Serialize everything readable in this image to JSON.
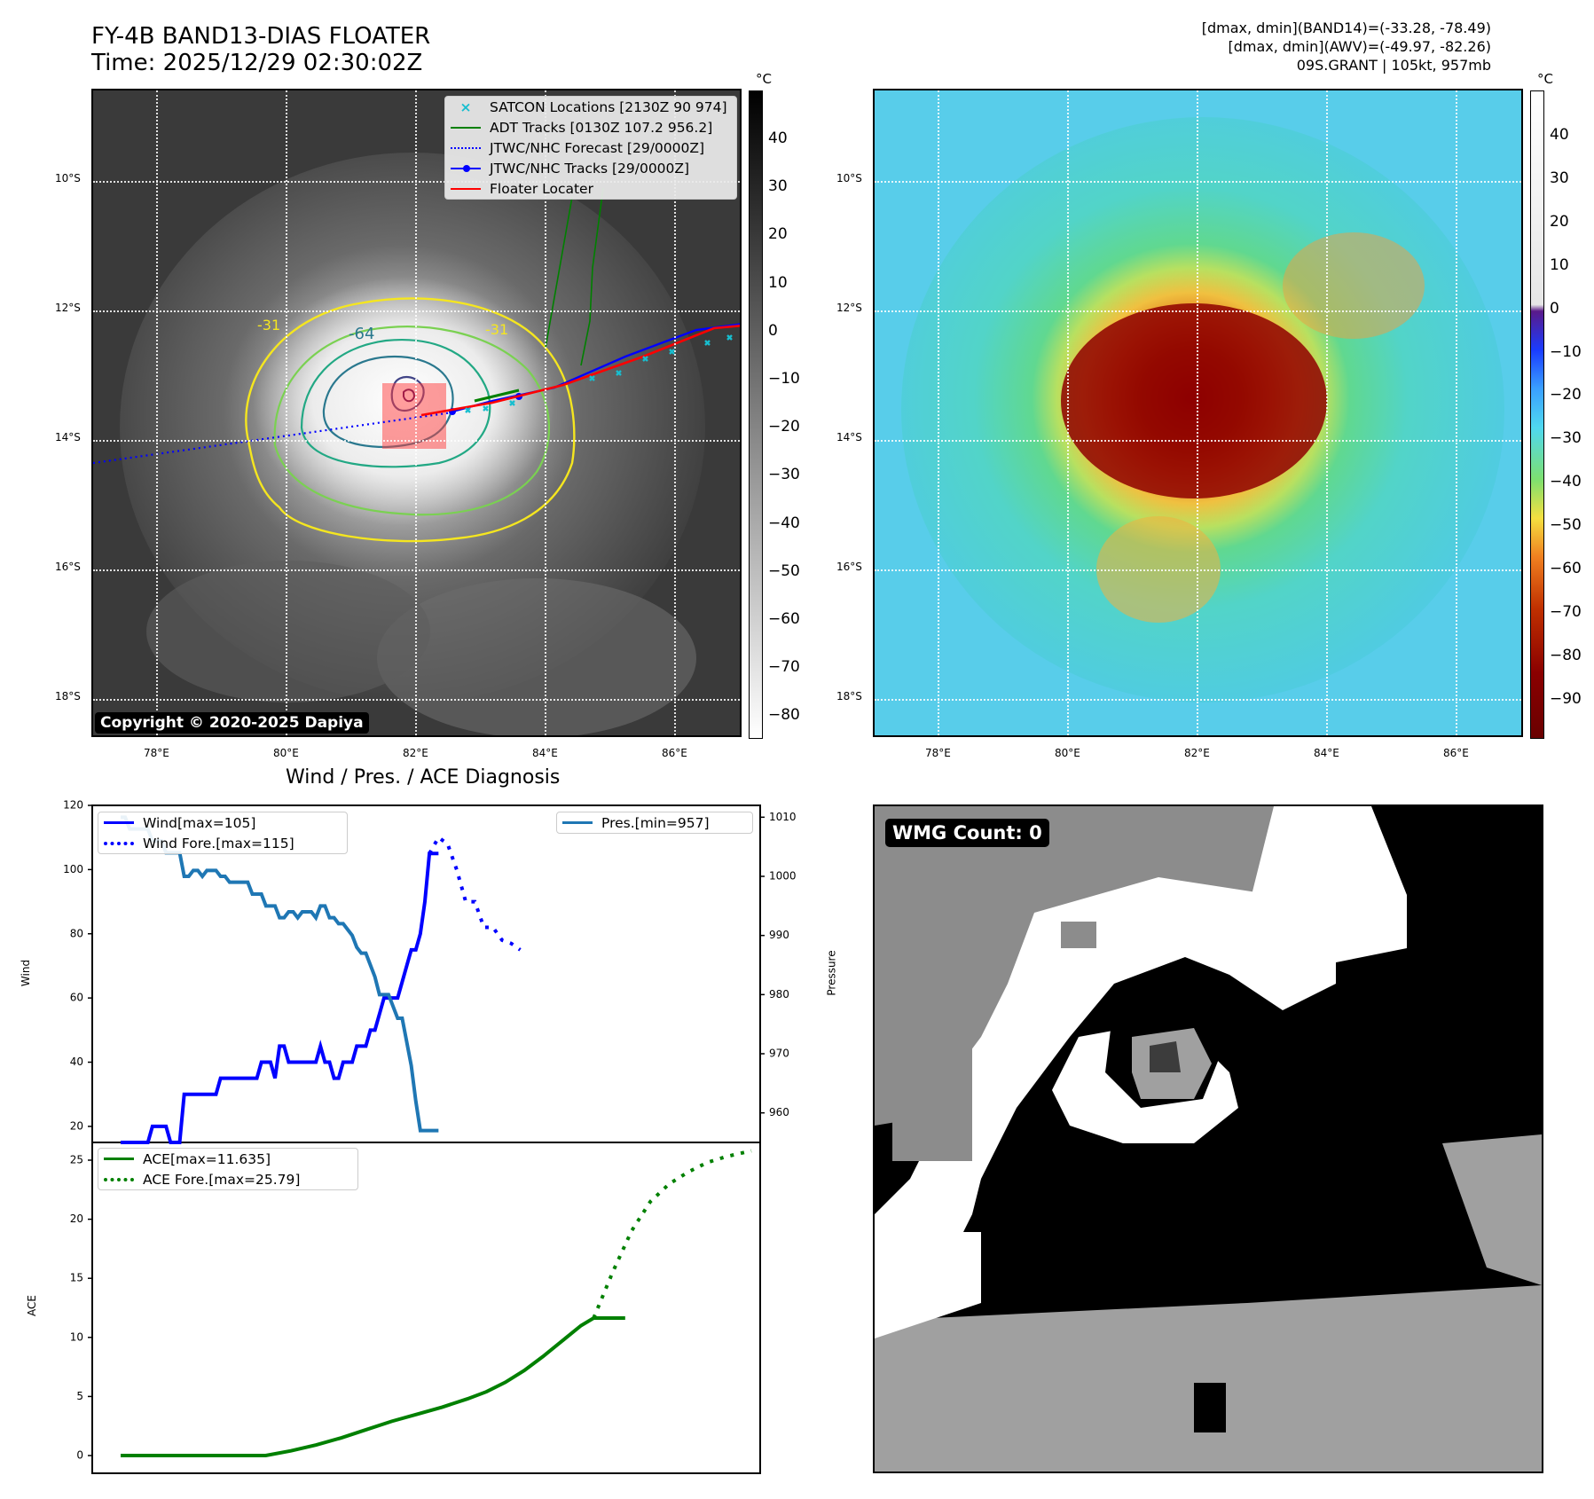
{
  "header": {
    "title_line1": "FY-4B BAND13-DIAS FLOATER",
    "title_line2": "Time: 2025/12/29 02:30:02Z",
    "info_line1": "[dmax, dmin](BAND14)=(-33.28, -78.49)",
    "info_line2": "[dmax, dmin](AWV)=(-49.97, -82.26)",
    "info_line3": "09S.GRANT | 105kt, 957mb"
  },
  "maps": {
    "lat_ticks": [
      "10°S",
      "12°S",
      "14°S",
      "16°S",
      "18°S"
    ],
    "lon_ticks": [
      "78°E",
      "80°E",
      "82°E",
      "84°E",
      "86°E"
    ],
    "colorbar_unit": "°C",
    "colorbar1_ticks": [
      "40",
      "30",
      "20",
      "10",
      "0",
      "−10",
      "−20",
      "−30",
      "−40",
      "−50",
      "−60",
      "−70",
      "−80"
    ],
    "colorbar2_ticks": [
      "40",
      "30",
      "20",
      "10",
      "0",
      "−10",
      "−20",
      "−30",
      "−40",
      "−50",
      "−60",
      "−70",
      "−80",
      "−90"
    ],
    "contour_labels": [
      "-31",
      "-64",
      "-31"
    ],
    "copyright": "Copyright © 2020-2025 Dapiya",
    "legend": [
      {
        "label": "SATCON Locations [2130Z 90 974]",
        "color": "#17becf"
      },
      {
        "label": "ADT Tracks [0130Z 107.2 956.2]",
        "color": "#008000"
      },
      {
        "label": "JTWC/NHC Forecast [29/0000Z]",
        "color": "#0000ff"
      },
      {
        "label": "JTWC/NHC Tracks [29/0000Z]",
        "color": "#0000ff"
      },
      {
        "label": "Floater Locater",
        "color": "#ff0000"
      }
    ]
  },
  "diagnosis": {
    "title": "Wind / Pres. / ACE Diagnosis",
    "wind_ylabel": "Wind",
    "pres_ylabel": "Pressure",
    "ace_ylabel": "ACE",
    "wind_ticks": [
      "120",
      "100",
      "80",
      "60",
      "40",
      "20"
    ],
    "pres_ticks": [
      "1010",
      "1000",
      "990",
      "980",
      "970",
      "960"
    ],
    "ace_ticks": [
      "25",
      "20",
      "15",
      "10",
      "5",
      "0"
    ],
    "legend_wind": "Wind[max=105]",
    "legend_wind_fore": "Wind Fore.[max=115]",
    "legend_pres": "Pres.[min=957]",
    "legend_ace": "ACE[max=11.635]",
    "legend_ace_fore": "ACE Fore.[max=25.79]",
    "wmg_label": "WMG Count: 0"
  },
  "chart_data": [
    {
      "type": "line",
      "title": "Wind / Pres. / ACE Diagnosis",
      "ylabel": "Wind",
      "ylim": [
        15,
        120
      ],
      "series": [
        {
          "name": "Wind[max=105]",
          "color": "#0000ff",
          "style": "solid",
          "x": [
            0,
            1,
            2,
            3,
            4,
            5,
            6,
            7,
            8,
            9,
            10,
            11,
            12,
            13,
            14,
            15,
            16,
            17,
            18,
            19,
            20,
            21,
            22,
            23,
            24,
            25,
            26,
            27,
            28,
            29,
            30,
            31,
            32,
            33,
            34,
            35,
            36,
            37,
            38,
            39,
            40,
            41,
            42,
            43,
            44,
            45,
            46,
            47,
            48,
            49,
            50,
            51,
            52,
            53,
            54,
            55,
            56,
            57,
            58,
            59,
            60,
            61,
            62,
            63,
            64,
            65,
            66,
            67,
            68,
            69,
            70
          ],
          "values": [
            15,
            15,
            15,
            15,
            15,
            15,
            15,
            20,
            20,
            20,
            20,
            15,
            15,
            15,
            30,
            30,
            30,
            30,
            30,
            30,
            30,
            30,
            35,
            35,
            35,
            35,
            35,
            35,
            35,
            35,
            35,
            40,
            40,
            40,
            35,
            45,
            45,
            40,
            40,
            40,
            40,
            40,
            40,
            40,
            45,
            40,
            40,
            35,
            35,
            40,
            40,
            40,
            45,
            45,
            45,
            50,
            50,
            55,
            60,
            60,
            60,
            60,
            65,
            70,
            75,
            75,
            80,
            90,
            105,
            105,
            105
          ]
        },
        {
          "name": "Wind Fore.[max=115]",
          "color": "#0000ff",
          "style": "dotted",
          "x": [
            68,
            70,
            72,
            74,
            76,
            78,
            80,
            82,
            84,
            86,
            88
          ],
          "values": [
            105,
            110,
            108,
            100,
            90,
            90,
            82,
            82,
            78,
            77,
            75
          ]
        }
      ]
    },
    {
      "type": "line",
      "ylabel": "Pressure",
      "ylim": [
        955,
        1012
      ],
      "series": [
        {
          "name": "Pres.[min=957]",
          "color": "#1f77b4",
          "style": "solid",
          "x": [
            0,
            1,
            2,
            3,
            4,
            5,
            6,
            7,
            8,
            9,
            10,
            11,
            12,
            13,
            14,
            15,
            16,
            17,
            18,
            19,
            20,
            21,
            22,
            23,
            24,
            25,
            26,
            27,
            28,
            29,
            30,
            31,
            32,
            33,
            34,
            35,
            36,
            37,
            38,
            39,
            40,
            41,
            42,
            43,
            44,
            45,
            46,
            47,
            48,
            49,
            50,
            51,
            52,
            53,
            54,
            55,
            56,
            57,
            58,
            59,
            60,
            61,
            62,
            63,
            64,
            65,
            66,
            67,
            68,
            69,
            70
          ],
          "values": [
            1010,
            1010,
            1008,
            1008,
            1008,
            1008,
            1008,
            1006,
            1006,
            1006,
            1004,
            1004,
            1004,
            1004,
            1000,
            1000,
            1001,
            1001,
            1000,
            1001,
            1001,
            1001,
            1000,
            1000,
            999,
            999,
            999,
            999,
            999,
            997,
            997,
            997,
            995,
            995,
            995,
            993,
            993,
            994,
            994,
            993,
            994,
            994,
            994,
            993,
            995,
            995,
            993,
            993,
            992,
            992,
            991,
            990,
            988,
            987,
            987,
            985,
            983,
            980,
            980,
            980,
            978,
            976,
            976,
            972,
            968,
            962,
            957,
            957,
            957,
            957,
            957
          ]
        }
      ]
    },
    {
      "type": "line",
      "ylabel": "ACE",
      "ylim": [
        -1.5,
        26.5
      ],
      "series": [
        {
          "name": "ACE[max=11.635]",
          "color": "#008000",
          "style": "solid",
          "x": [
            0,
            10,
            20,
            23,
            27,
            31,
            35,
            39,
            43,
            47,
            51,
            55,
            58,
            61,
            64,
            67,
            70,
            73,
            75,
            77,
            78,
            79,
            80
          ],
          "values": [
            0,
            0,
            0,
            0,
            0.4,
            0.9,
            1.5,
            2.2,
            2.9,
            3.5,
            4.1,
            4.8,
            5.4,
            6.2,
            7.2,
            8.4,
            9.7,
            11.0,
            11.635,
            11.635,
            11.635,
            11.635,
            11.635
          ]
        },
        {
          "name": "ACE Fore.[max=25.79]",
          "color": "#008000",
          "style": "dotted",
          "x": [
            75,
            78,
            81,
            84,
            87,
            90,
            93,
            96,
            100
          ],
          "values": [
            11.635,
            15.5,
            19.0,
            21.5,
            23.0,
            24.0,
            24.8,
            25.3,
            25.79
          ]
        }
      ]
    }
  ]
}
